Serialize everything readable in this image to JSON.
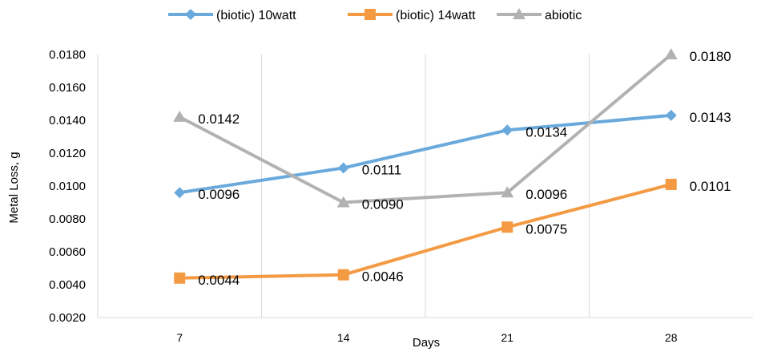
{
  "chart_data": {
    "type": "line",
    "x": [
      7,
      14,
      21,
      28
    ],
    "xlabel": "Days",
    "ylabel": "Metal Loss, g",
    "ylim": [
      0.002,
      0.018
    ],
    "yticks": [
      "0.0020",
      "0.0040",
      "0.0060",
      "0.0080",
      "0.0100",
      "0.0120",
      "0.0140",
      "0.0160",
      "0.0180"
    ],
    "grid": "vertical",
    "legend": "top",
    "series": [
      {
        "name": "(biotic) 10watt",
        "color": "#6aa9dc",
        "marker": "diamond",
        "values": [
          0.0096,
          0.0111,
          0.0134,
          0.0143
        ],
        "labels": [
          "0.0096",
          "0.0111",
          "0.0134",
          "0.0143"
        ]
      },
      {
        "name": "(biotic) 14watt",
        "color": "#f39a43",
        "marker": "square",
        "values": [
          0.0044,
          0.0046,
          0.0075,
          0.0101
        ],
        "labels": [
          "0.0044",
          "0.0046",
          "0.0075",
          "0.0101"
        ]
      },
      {
        "name": "abiotic",
        "color": "#b2b2b2",
        "marker": "triangle",
        "values": [
          0.0142,
          0.009,
          0.0096,
          0.018
        ],
        "labels": [
          "0.0142",
          "0.0090",
          "0.0096",
          "0.0180"
        ]
      }
    ]
  }
}
